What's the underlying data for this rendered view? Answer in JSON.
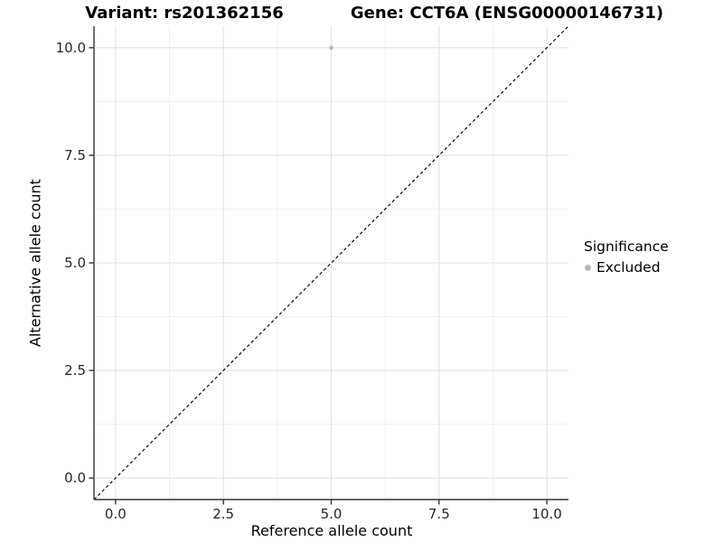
{
  "header": {
    "title_left": "Variant: rs201362156",
    "title_right": "Gene: CCT6A (ENSG00000146731)"
  },
  "chart_data": {
    "type": "scatter",
    "xlabel": "Reference allele count",
    "ylabel": "Alternative allele count",
    "xlim": [
      -0.5,
      10.5
    ],
    "ylim": [
      -0.5,
      10.5
    ],
    "x_tick_values": [
      0,
      2.5,
      5,
      7.5,
      10
    ],
    "x_tick_labels": [
      "0.0",
      "2.5",
      "5.0",
      "7.5",
      "10.0"
    ],
    "y_tick_values": [
      0,
      2.5,
      5,
      7.5,
      10
    ],
    "y_tick_labels": [
      "0.0",
      "2.5",
      "5.0",
      "7.5",
      "10.0"
    ],
    "minor_tick_values": [
      1.25,
      3.75,
      6.25,
      8.75
    ],
    "grid": "major+minor",
    "series": [
      {
        "name": "Excluded",
        "color": "#b9b9b9",
        "points": [
          {
            "x": 5,
            "y": 10
          }
        ]
      }
    ],
    "reference_line": {
      "style": "dashed",
      "color": "#000000",
      "from": [
        -0.5,
        -0.5
      ],
      "to": [
        10.5,
        10.5
      ]
    },
    "legend": {
      "position": "right",
      "title": "Significance",
      "items": [
        {
          "label": "Excluded",
          "color": "#b9b9b9"
        }
      ]
    }
  },
  "colors": {
    "background": "#ffffff",
    "grid_major": "#e3e3e3",
    "grid_minor": "#efefef",
    "axis_line": "#333333",
    "tick_text": "#262626",
    "point": "#b9b9b9",
    "dashed_line": "#000000",
    "text": "#000000"
  }
}
